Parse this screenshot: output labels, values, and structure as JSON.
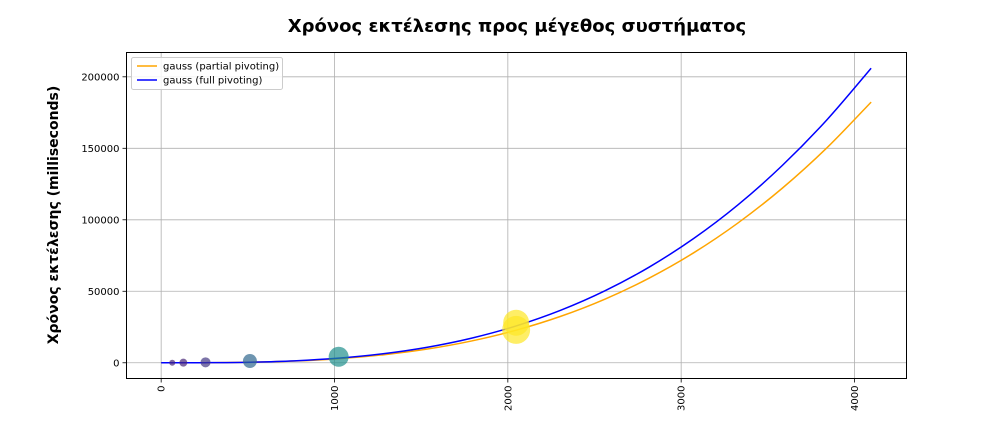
{
  "chart_data": {
    "type": "line",
    "title": "Χρόνος εκτέλεσης προς μέγεθος συστήματος",
    "xlabel": "",
    "ylabel": "Χρόνος εκτέλεσης (milliseconds)",
    "xlim": [
      -200,
      4300
    ],
    "ylim": [
      -11000,
      217000
    ],
    "x_ticks": [
      0,
      1000,
      2000,
      3000,
      4000
    ],
    "y_ticks": [
      0,
      50000,
      100000,
      150000,
      200000
    ],
    "grid": true,
    "legend_position": "top-left",
    "series": [
      {
        "name": "gauss (partial pivoting)",
        "color": "#ffa500",
        "x": [
          0,
          256,
          512,
          768,
          1024,
          1280,
          1536,
          1792,
          2048,
          2304,
          2560,
          2816,
          3072,
          3328,
          3584,
          3840,
          4096
        ],
        "values": [
          0,
          44,
          356,
          1200,
          2850,
          5560,
          9600,
          15270,
          22800,
          32450,
          44500,
          59250,
          76900,
          97800,
          122150,
          150250,
          182300
        ]
      },
      {
        "name": "gauss (full pivoting)",
        "color": "#0000ff",
        "x": [
          0,
          256,
          512,
          768,
          1024,
          1280,
          1536,
          1792,
          2048,
          2304,
          2560,
          2816,
          3072,
          3328,
          3584,
          3840,
          4096
        ],
        "values": [
          0,
          50,
          402,
          1360,
          3220,
          6290,
          10860,
          17250,
          25750,
          36670,
          50300,
          66950,
          86920,
          110500,
          138050,
          169800,
          206000
        ]
      }
    ],
    "scatter": [
      {
        "x": 64,
        "y": 30,
        "size": 3,
        "color": "#482878"
      },
      {
        "x": 128,
        "y": 60,
        "size": 4,
        "color": "#482878"
      },
      {
        "x": 256,
        "y": 300,
        "size": 5,
        "color": "#443983"
      },
      {
        "x": 512,
        "y": 1200,
        "size": 7,
        "color": "#31688e"
      },
      {
        "x": 1024,
        "y": 4200,
        "size": 10,
        "color": "#21908d"
      },
      {
        "x": 2048,
        "y": 23000,
        "size": 14,
        "color": "#fde725"
      },
      {
        "x": 2048,
        "y": 28000,
        "size": 13,
        "color": "#fde725"
      }
    ]
  }
}
